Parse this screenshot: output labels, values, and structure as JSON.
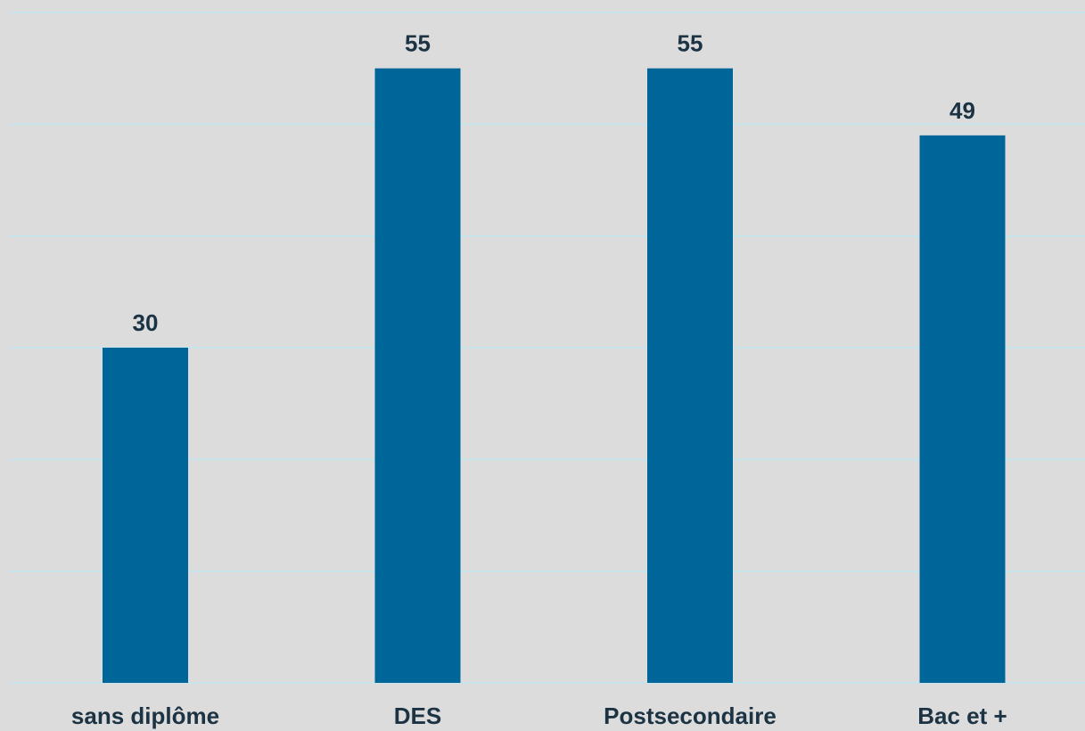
{
  "chart_data": {
    "type": "bar",
    "title": "",
    "xlabel": "",
    "ylabel": "",
    "categories": [
      "sans diplôme",
      "DES",
      "Postsecondaire",
      "Bac et +"
    ],
    "values": [
      30,
      55,
      55,
      49
    ],
    "value_labels": [
      "30",
      "55",
      "55",
      "49"
    ],
    "ylim": [
      0,
      60
    ],
    "grid": true,
    "legend": "none"
  },
  "colors": {
    "background": "#dcdcdc",
    "bar": "#006699",
    "gridline": "#bfe6ee",
    "text": "#1c3344"
  }
}
